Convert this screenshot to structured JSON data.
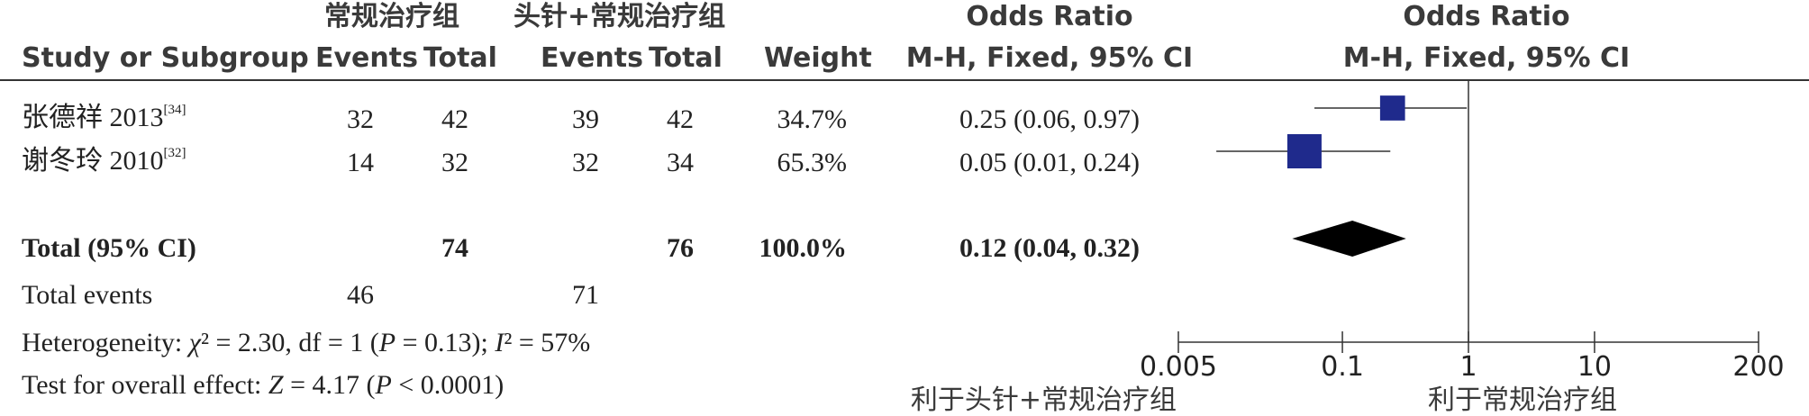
{
  "headers": {
    "group1": "常规治疗组",
    "group2": "头针+常规治疗组",
    "or_title": "Odds Ratio",
    "or_method": "M-H, Fixed, 95% CI",
    "plot_title": "Odds Ratio",
    "plot_method": "M-H, Fixed, 95% CI",
    "study": "Study or Subgroup",
    "events1": "Events",
    "total1": "Total",
    "events2": "Events",
    "total2": "Total",
    "weight": "Weight"
  },
  "studies": [
    {
      "name": "张德祥 2013",
      "ref": "[34]",
      "events1": "32",
      "total1": "42",
      "events2": "39",
      "total2": "42",
      "weight": "34.7%",
      "ci_text": "0.25 (0.06, 0.97)"
    },
    {
      "name": "谢冬玲 2010",
      "ref": "[32]",
      "events1": "14",
      "total1": "32",
      "events2": "32",
      "total2": "34",
      "weight": "65.3%",
      "ci_text": "0.05 (0.01, 0.24)"
    }
  ],
  "total": {
    "label": "Total (95% CI)",
    "total1": "74",
    "total2": "76",
    "weight": "100.0%",
    "ci_text": "0.12 (0.04, 0.32)"
  },
  "total_events": {
    "label": "Total events",
    "events1": "46",
    "events2": "71"
  },
  "heterogeneity": {
    "prefix": "Heterogeneity: ",
    "chi_sym": "χ",
    "chi_rest": "² = 2.30, df = 1 (",
    "p_sym": "P",
    "p_rest": " = 0.13); ",
    "i_sym": "I",
    "i_rest": "² = 57%"
  },
  "overall": {
    "prefix": "Test for overall effect: ",
    "z_sym": "Z",
    "z_rest": " = 4.17 (",
    "p_sym": "P",
    "p_rest": " < 0.0001)"
  },
  "axis": {
    "ticks": [
      "0.005",
      "0.1",
      "1",
      "10",
      "200"
    ],
    "favours_left": "利于头针+常规治疗组",
    "favours_right": "利于常规治疗组"
  },
  "colors": {
    "square": "#1f2a8c",
    "diamond": "#000000",
    "line": "#333333"
  },
  "chart_data": {
    "type": "forest",
    "scale": "log",
    "xlim": [
      0.005,
      200
    ],
    "null_line": 1,
    "studies": [
      {
        "name": "张德祥 2013",
        "or": 0.25,
        "lower": 0.06,
        "upper": 0.97,
        "weight": 34.7
      },
      {
        "name": "谢冬玲 2010",
        "or": 0.05,
        "lower": 0.01,
        "upper": 0.24,
        "weight": 65.3
      }
    ],
    "pooled": {
      "or": 0.12,
      "lower": 0.04,
      "upper": 0.32
    }
  }
}
